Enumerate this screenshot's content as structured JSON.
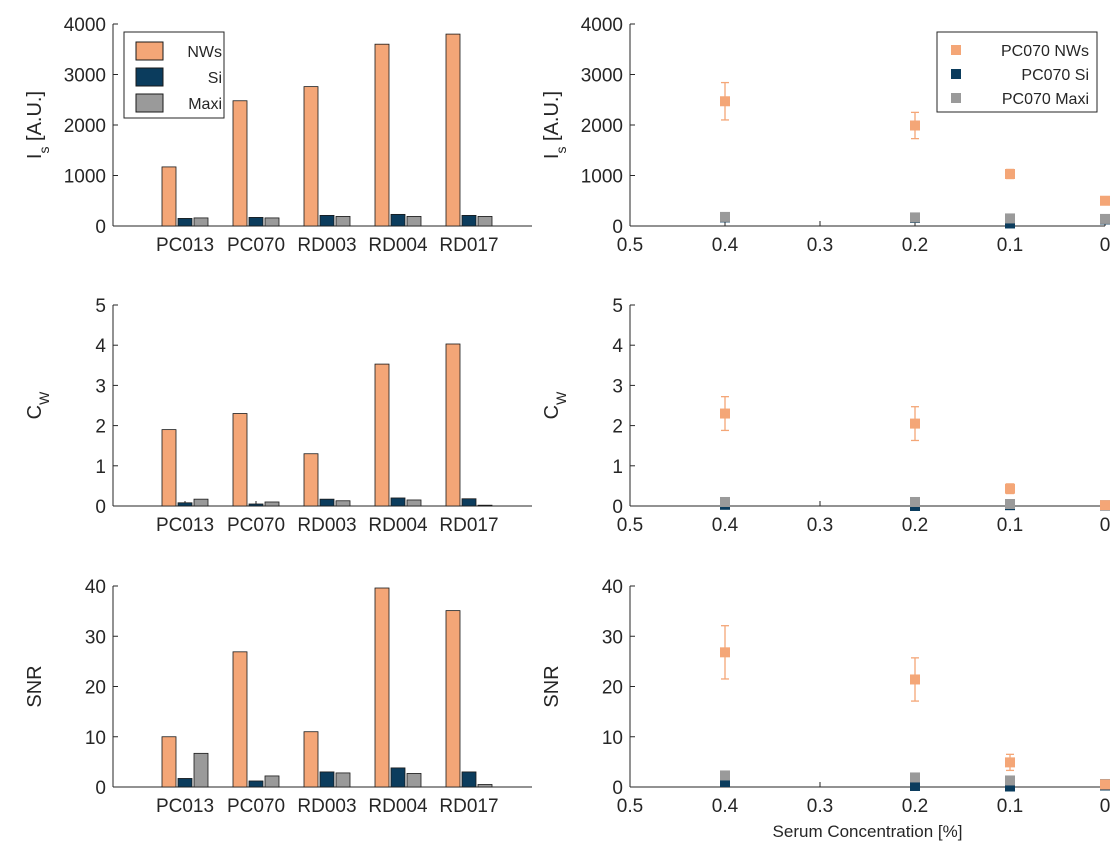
{
  "colors": {
    "nws": "#F4A677",
    "si": "#0B3C5D",
    "maxi": "#9A9A9A",
    "axis": "#262626",
    "bar_edge": "#1A1A1A"
  },
  "chart_data": [
    {
      "id": "is-bar",
      "type": "bar",
      "ylabel_main": "I",
      "ylabel_sub": "s",
      "ylabel_rest": " [A.U.]",
      "ylim": [
        0,
        4000
      ],
      "yticks": [
        0,
        1000,
        2000,
        3000,
        4000
      ],
      "categories": [
        "PC013",
        "PC070",
        "RD003",
        "RD004",
        "RD017"
      ],
      "legend": {
        "position": "top-left",
        "entries": [
          "NWs",
          "Si",
          "Maxi"
        ]
      },
      "series": [
        {
          "name": "NWs",
          "color": "#F4A677",
          "values": [
            1170,
            2480,
            2760,
            3600,
            3800
          ]
        },
        {
          "name": "Si",
          "color": "#0B3C5D",
          "values": [
            150,
            170,
            210,
            230,
            210
          ]
        },
        {
          "name": "Maxi",
          "color": "#9A9A9A",
          "values": [
            160,
            160,
            190,
            190,
            190
          ]
        }
      ]
    },
    {
      "id": "is-scatter",
      "type": "scatter",
      "ylabel_main": "I",
      "ylabel_sub": "s",
      "ylabel_rest": " [A.U.]",
      "ylim": [
        0,
        4000
      ],
      "yticks": [
        0,
        1000,
        2000,
        3000,
        4000
      ],
      "xlim": [
        0.5,
        0
      ],
      "xticks": [
        0.5,
        0.4,
        0.3,
        0.2,
        0.1,
        0
      ],
      "legend": {
        "position": "top-right",
        "entries": [
          "PC070 NWs",
          "PC070 Si",
          "PC070 Maxi"
        ]
      },
      "series": [
        {
          "name": "PC070 NWs",
          "color": "#F4A677",
          "x": [
            0.4,
            0.2,
            0.1,
            0
          ],
          "y": [
            2470,
            1990,
            1030,
            500
          ],
          "err": [
            370,
            260,
            90,
            40
          ]
        },
        {
          "name": "PC070 Si",
          "color": "#0B3C5D",
          "x": [
            0.4,
            0.2,
            0.1,
            0
          ],
          "y": [
            170,
            160,
            50,
            130
          ],
          "err": [
            0,
            0,
            0,
            0
          ]
        },
        {
          "name": "PC070 Maxi",
          "color": "#9A9A9A",
          "x": [
            0.4,
            0.2,
            0.1,
            0
          ],
          "y": [
            180,
            170,
            150,
            140
          ],
          "err": [
            0,
            0,
            0,
            0
          ]
        }
      ]
    },
    {
      "id": "cw-bar",
      "type": "bar",
      "ylabel_main": "C",
      "ylabel_sub": "W",
      "ylabel_rest": "",
      "ylim": [
        0,
        5
      ],
      "yticks": [
        0,
        1,
        2,
        3,
        4,
        5
      ],
      "categories": [
        "PC013",
        "PC070",
        "RD003",
        "RD004",
        "RD017"
      ],
      "series": [
        {
          "name": "NWs",
          "color": "#F4A677",
          "values": [
            1.9,
            2.3,
            1.3,
            3.53,
            4.03
          ]
        },
        {
          "name": "Si",
          "color": "#0B3C5D",
          "values": [
            0.08,
            0.05,
            0.17,
            0.2,
            0.18
          ]
        },
        {
          "name": "Maxi",
          "color": "#9A9A9A",
          "values": [
            0.17,
            0.1,
            0.13,
            0.15,
            0.02
          ]
        }
      ]
    },
    {
      "id": "cw-scatter",
      "type": "scatter",
      "ylabel_main": "C",
      "ylabel_sub": "W",
      "ylabel_rest": "",
      "ylim": [
        0,
        5
      ],
      "yticks": [
        0,
        1,
        2,
        3,
        4,
        5
      ],
      "xlim": [
        0.5,
        0
      ],
      "xticks": [
        0.5,
        0.4,
        0.3,
        0.2,
        0.1,
        0
      ],
      "series": [
        {
          "name": "PC070 NWs",
          "color": "#F4A677",
          "x": [
            0.4,
            0.2,
            0.1,
            0
          ],
          "y": [
            2.3,
            2.05,
            0.43,
            0.02
          ],
          "err": [
            0.42,
            0.42,
            0.12,
            0
          ]
        },
        {
          "name": "PC070 Si",
          "color": "#0B3C5D",
          "x": [
            0.4,
            0.2,
            0.1,
            0
          ],
          "y": [
            0.03,
            0.0,
            0.02,
            0.01
          ],
          "err": [
            0,
            0,
            0,
            0
          ]
        },
        {
          "name": "PC070 Maxi",
          "color": "#9A9A9A",
          "x": [
            0.4,
            0.2,
            0.1,
            0
          ],
          "y": [
            0.1,
            0.1,
            0.05,
            0.02
          ],
          "err": [
            0,
            0,
            0,
            0
          ]
        }
      ]
    },
    {
      "id": "snr-bar",
      "type": "bar",
      "ylabel_main": "SNR",
      "ylabel_sub": "",
      "ylabel_rest": "",
      "ylim": [
        0,
        40
      ],
      "yticks": [
        0,
        10,
        20,
        30,
        40
      ],
      "categories": [
        "PC013",
        "PC070",
        "RD003",
        "RD004",
        "RD017"
      ],
      "series": [
        {
          "name": "NWs",
          "color": "#F4A677",
          "values": [
            10,
            26.9,
            11,
            39.6,
            35.1
          ]
        },
        {
          "name": "Si",
          "color": "#0B3C5D",
          "values": [
            1.7,
            1.2,
            3.0,
            3.8,
            3.0
          ]
        },
        {
          "name": "Maxi",
          "color": "#9A9A9A",
          "values": [
            6.7,
            2.2,
            2.8,
            2.7,
            0.5
          ]
        }
      ]
    },
    {
      "id": "snr-scatter",
      "type": "scatter",
      "ylabel_main": "SNR",
      "ylabel_sub": "",
      "ylabel_rest": "",
      "ylim": [
        0,
        40
      ],
      "yticks": [
        0,
        10,
        20,
        30,
        40
      ],
      "xlim": [
        0.5,
        0
      ],
      "xticks": [
        0.5,
        0.4,
        0.3,
        0.2,
        0.1,
        0
      ],
      "xlabel": "Serum Concentration [%]",
      "series": [
        {
          "name": "PC070 NWs",
          "color": "#F4A677",
          "x": [
            0.4,
            0.2,
            0.1,
            0
          ],
          "y": [
            26.8,
            21.4,
            4.9,
            0.5
          ],
          "err": [
            5.3,
            4.3,
            1.6,
            0
          ]
        },
        {
          "name": "PC070 Si",
          "color": "#0B3C5D",
          "x": [
            0.4,
            0.2,
            0.1,
            0
          ],
          "y": [
            1.0,
            0.2,
            0.1,
            0.3
          ],
          "err": [
            0,
            0,
            0,
            0
          ]
        },
        {
          "name": "PC070 Maxi",
          "color": "#9A9A9A",
          "x": [
            0.4,
            0.2,
            0.1,
            0
          ],
          "y": [
            2.3,
            1.9,
            1.3,
            0.6
          ],
          "err": [
            0,
            0,
            0,
            0
          ]
        }
      ]
    }
  ]
}
